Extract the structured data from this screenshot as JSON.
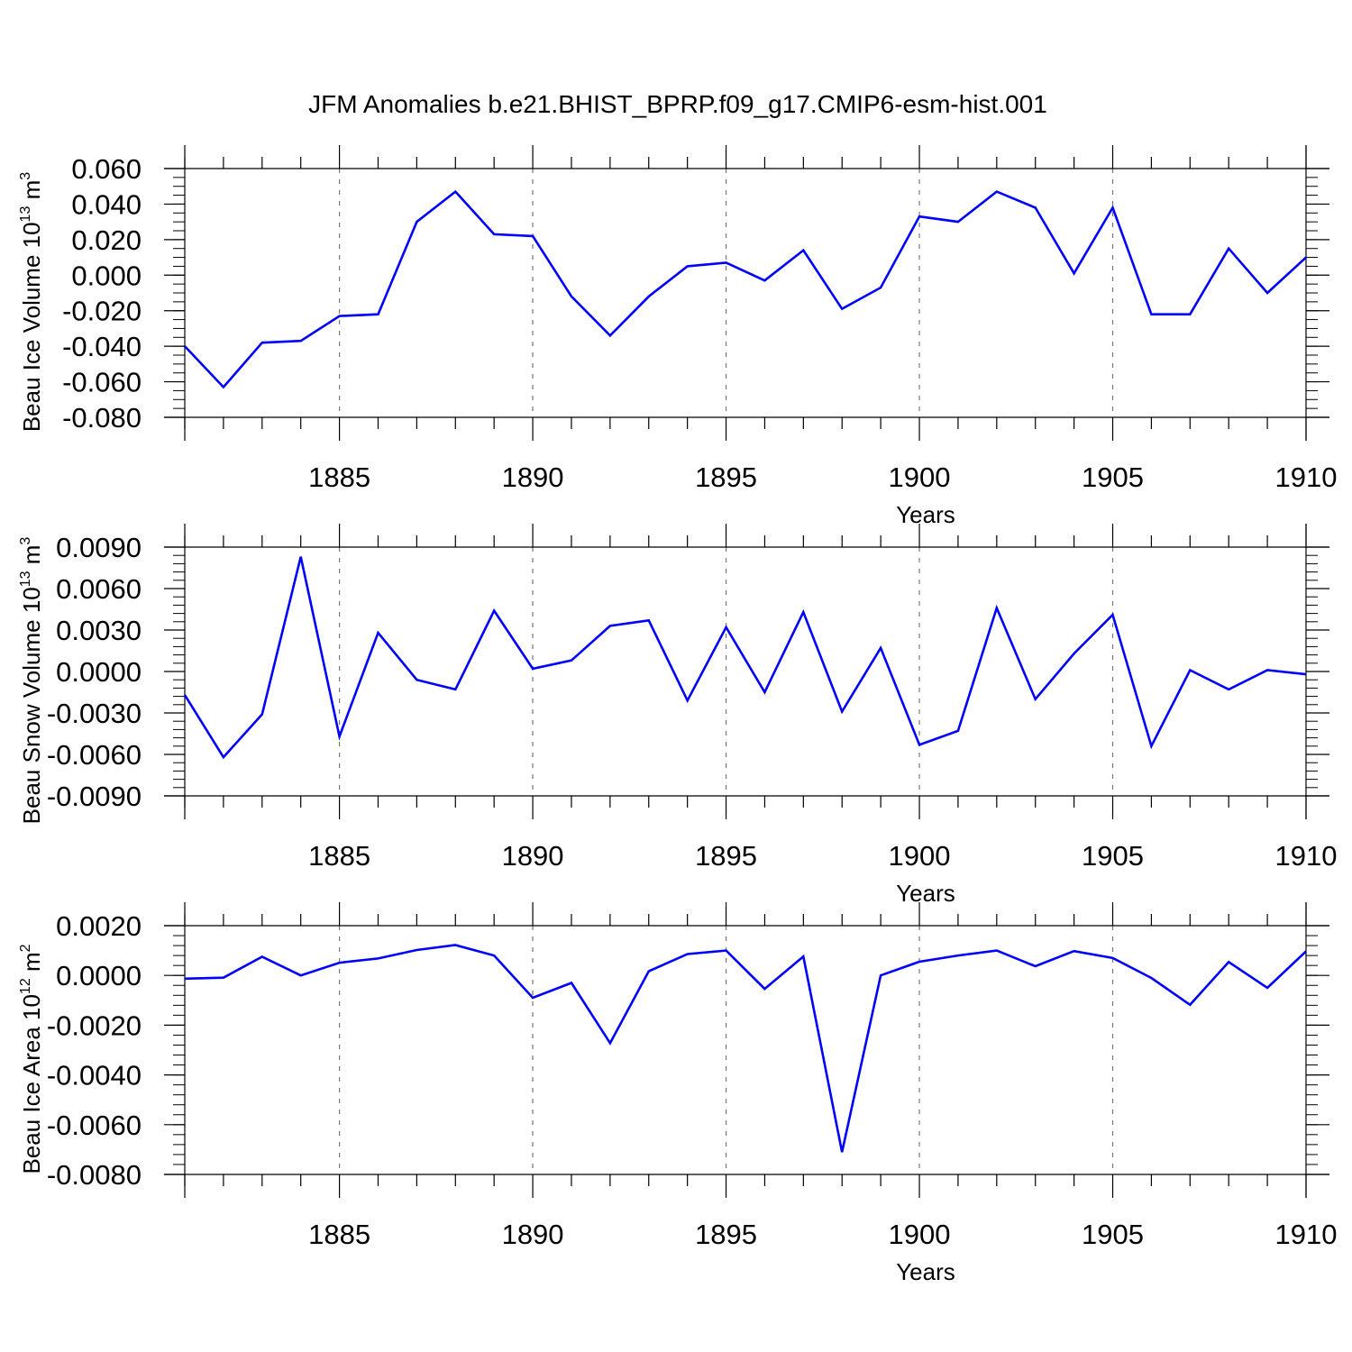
{
  "title": "JFM Anomalies b.e21.BHIST_BPRP.f09_g17.CMIP6-esm-hist.001",
  "colors": {
    "series": "#0000ff",
    "axis": "#000000",
    "grid": "#777777"
  },
  "chart_data": [
    {
      "type": "line",
      "ylabel_main": "Beau Ice Volume 10",
      "ylabel_exp": "13",
      "ylabel_unit": " m",
      "ylabel_unit_exp": "3",
      "xlabel": "Years",
      "xlim": [
        1881,
        1910
      ],
      "ylim": [
        -0.08,
        0.06
      ],
      "x_ticks": [
        1885,
        1890,
        1895,
        1900,
        1905,
        1910
      ],
      "x_tick_labels": [
        "1885",
        "1890",
        "1895",
        "1900",
        "1905",
        "1910"
      ],
      "y_ticks": [
        0.06,
        0.04,
        0.02,
        0.0,
        -0.02,
        -0.04,
        -0.06,
        -0.08
      ],
      "y_tick_labels": [
        "0.060",
        "0.040",
        "0.020",
        "0.000",
        "-0.020",
        "-0.040",
        "-0.060",
        "-0.080"
      ],
      "y_minor_step": 0.005,
      "grid_x": [
        1885,
        1890,
        1895,
        1900,
        1905
      ],
      "x": [
        1881,
        1882,
        1883,
        1884,
        1885,
        1886,
        1887,
        1888,
        1889,
        1890,
        1891,
        1892,
        1893,
        1894,
        1895,
        1896,
        1897,
        1898,
        1899,
        1900,
        1901,
        1902,
        1903,
        1904,
        1905,
        1906,
        1907,
        1908,
        1909,
        1910
      ],
      "values": [
        -0.04,
        -0.063,
        -0.038,
        -0.037,
        -0.023,
        -0.022,
        0.03,
        0.047,
        0.023,
        0.022,
        -0.012,
        -0.034,
        -0.012,
        0.005,
        0.007,
        -0.003,
        0.014,
        -0.019,
        -0.007,
        0.033,
        0.03,
        0.047,
        0.038,
        0.001,
        0.038,
        -0.022,
        -0.022,
        0.015,
        -0.01,
        0.01
      ]
    },
    {
      "type": "line",
      "ylabel_main": "Beau Snow Volume 10",
      "ylabel_exp": "13",
      "ylabel_unit": " m",
      "ylabel_unit_exp": "3",
      "xlabel": "Years",
      "xlim": [
        1881,
        1910
      ],
      "ylim": [
        -0.009,
        0.009
      ],
      "x_ticks": [
        1885,
        1890,
        1895,
        1900,
        1905,
        1910
      ],
      "x_tick_labels": [
        "1885",
        "1890",
        "1895",
        "1900",
        "1905",
        "1910"
      ],
      "y_ticks": [
        0.009,
        0.006,
        0.003,
        0.0,
        -0.003,
        -0.006,
        -0.009
      ],
      "y_tick_labels": [
        "0.0090",
        "0.0060",
        "0.0030",
        "0.0000",
        "-0.0030",
        "-0.0060",
        "-0.0090"
      ],
      "y_minor_step": 0.0006,
      "grid_x": [
        1885,
        1890,
        1895,
        1900,
        1905
      ],
      "x": [
        1881,
        1882,
        1883,
        1884,
        1885,
        1886,
        1887,
        1888,
        1889,
        1890,
        1891,
        1892,
        1893,
        1894,
        1895,
        1896,
        1897,
        1898,
        1899,
        1900,
        1901,
        1902,
        1903,
        1904,
        1905,
        1906,
        1907,
        1908,
        1909,
        1910
      ],
      "values": [
        -0.0017,
        -0.0062,
        -0.0031,
        0.0083,
        -0.0047,
        0.0028,
        -0.0006,
        -0.0013,
        0.0044,
        0.0002,
        0.0008,
        0.0033,
        0.0037,
        -0.0021,
        0.0032,
        -0.0015,
        0.0043,
        -0.0029,
        0.0017,
        -0.0053,
        -0.0043,
        0.0046,
        -0.002,
        0.0013,
        0.0041,
        -0.0054,
        0.0001,
        -0.0013,
        0.0001,
        -0.0002
      ]
    },
    {
      "type": "line",
      "ylabel_main": "Beau Ice Area 10",
      "ylabel_exp": "12",
      "ylabel_unit": " m",
      "ylabel_unit_exp": "2",
      "xlabel": "Years",
      "xlim": [
        1881,
        1910
      ],
      "ylim": [
        -0.008,
        0.002
      ],
      "x_ticks": [
        1885,
        1890,
        1895,
        1900,
        1905,
        1910
      ],
      "x_tick_labels": [
        "1885",
        "1890",
        "1895",
        "1900",
        "1905",
        "1910"
      ],
      "y_ticks": [
        0.002,
        0.0,
        -0.002,
        -0.004,
        -0.006,
        -0.008
      ],
      "y_tick_labels": [
        "0.0020",
        "0.0000",
        "-0.0020",
        "-0.0040",
        "-0.0060",
        "-0.0080"
      ],
      "y_minor_step": 0.0004,
      "grid_x": [
        1885,
        1890,
        1895,
        1900,
        1905
      ],
      "x": [
        1881,
        1882,
        1883,
        1884,
        1885,
        1886,
        1887,
        1888,
        1889,
        1890,
        1891,
        1892,
        1893,
        1894,
        1895,
        1896,
        1897,
        1898,
        1899,
        1900,
        1901,
        1902,
        1903,
        1904,
        1905,
        1906,
        1907,
        1908,
        1909,
        1910
      ],
      "values": [
        -0.00013,
        -9e-05,
        0.00075,
        0.0,
        0.00051,
        0.00068,
        0.00102,
        0.00122,
        0.0008,
        -0.0009,
        -0.0003,
        -0.00272,
        0.00017,
        0.00086,
        0.001,
        -0.00054,
        0.00076,
        -0.0071,
        0.0,
        0.00055,
        0.0008,
        0.001,
        0.00037,
        0.00098,
        0.0007,
        -0.0001,
        -0.00118,
        0.00054,
        -0.0005,
        0.00097
      ]
    }
  ]
}
